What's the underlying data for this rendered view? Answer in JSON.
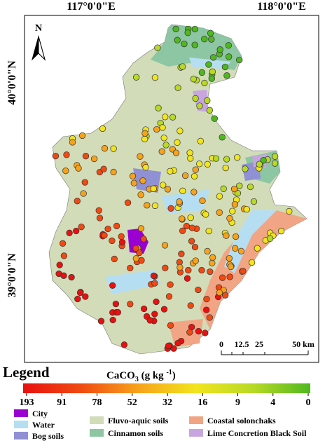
{
  "map": {
    "lon_labels": [
      "117°0'0\"E",
      "118°0'0\"E"
    ],
    "lat_labels": [
      "40°0'0\"N",
      "39°0'0\"N"
    ],
    "north": "N",
    "scale_labels": [
      "0",
      "12.5",
      "25",
      "50 km"
    ]
  },
  "legend": {
    "title": "Legend",
    "colorbar_title": {
      "text": "CaCO",
      "sub": "3",
      "unit": " (g kg ",
      "sup": "-1",
      "close": ")"
    },
    "colorbar_ticks": [
      193,
      91,
      78,
      52,
      32,
      16,
      9,
      4,
      0
    ],
    "colorbar_colors": [
      "#e8110f",
      "#f04a12",
      "#f7a21a",
      "#f2e41e",
      "#b8d926",
      "#4fb81f"
    ],
    "items": [
      {
        "label": "City",
        "color": "#9b00d3"
      },
      {
        "label": "Water",
        "color": "#b6def2"
      },
      {
        "label": "Bog soils",
        "color": "#9090d4"
      },
      {
        "label": "Fluvo-aquic soils",
        "color": "#d2dcb8"
      },
      {
        "label": "Cinnamon soils",
        "color": "#8cc6a2"
      },
      {
        "label": "Coastal solonchaks",
        "color": "#f2a584"
      },
      {
        "label": "Lime Concretion Black Soil",
        "color": "#c7a6e0"
      }
    ]
  }
}
